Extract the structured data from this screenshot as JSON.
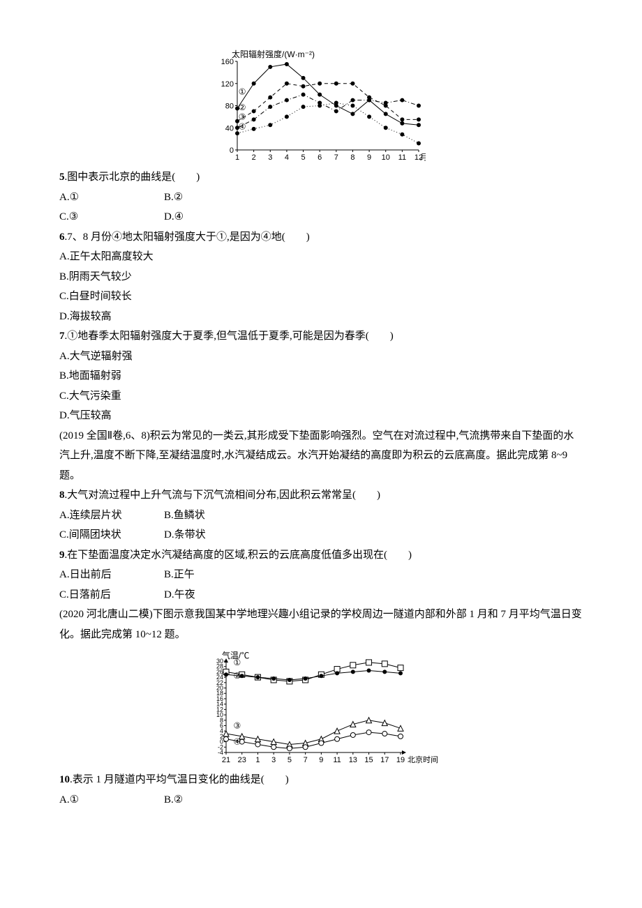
{
  "chart1": {
    "title": "太阳辐射强度/(W·m⁻²)",
    "type": "line",
    "x_categories": [
      "1",
      "2",
      "3",
      "4",
      "5",
      "6",
      "7",
      "8",
      "9",
      "10",
      "11",
      "12"
    ],
    "x_suffix": "月份",
    "ylim": [
      0,
      160
    ],
    "ytick_step": 40,
    "yticks": [
      "0",
      "40",
      "80",
      "120",
      "160"
    ],
    "background_color": "#ffffff",
    "axis_color": "#000000",
    "text_color": "#000000",
    "label_fontsize": 11,
    "marker": "circle",
    "marker_fill": "#000000",
    "marker_size": 3,
    "line_color": "#000000",
    "series": [
      {
        "label": "①",
        "dash": "solid",
        "values": [
          75,
          120,
          150,
          155,
          130,
          100,
          80,
          65,
          90,
          65,
          48,
          45
        ]
      },
      {
        "label": "②",
        "dash": "dashed",
        "values": [
          52,
          70,
          95,
          120,
          115,
          120,
          120,
          120,
          95,
          80,
          55,
          55
        ]
      },
      {
        "label": "③",
        "dash": "dashdot",
        "values": [
          40,
          55,
          78,
          90,
          100,
          85,
          70,
          90,
          90,
          85,
          90,
          80
        ]
      },
      {
        "label": "④",
        "dash": "dotted",
        "values": [
          30,
          38,
          45,
          60,
          78,
          80,
          85,
          80,
          60,
          40,
          28,
          12
        ]
      }
    ],
    "series_label_positions": [
      {
        "x": 1.3,
        "y": 100
      },
      {
        "x": 1.3,
        "y": 72
      },
      {
        "x": 1.3,
        "y": 55
      },
      {
        "x": 1.3,
        "y": 37
      }
    ]
  },
  "q5": {
    "num": "5",
    "text": ".图中表示北京的曲线是(　　)",
    "opts": [
      "A.①",
      "B.②",
      "C.③",
      "D.④"
    ]
  },
  "q6": {
    "num": "6",
    "text": ".7、8 月份④地太阳辐射强度大于①,是因为④地(　　)",
    "opts": [
      "A.正午太阳高度较大",
      "B.阴雨天气较少",
      "C.白昼时间较长",
      "D.海拔较高"
    ]
  },
  "q7": {
    "num": "7",
    "text": ".①地春季太阳辐射强度大于夏季,但气温低于夏季,可能是因为春季(　　)",
    "opts": [
      "A.大气逆辐射强",
      "B.地面辐射弱",
      "C.大气污染重",
      "D.气压较高"
    ]
  },
  "passage1": "(2019 全国Ⅱ卷,6、8)积云为常见的一类云,其形成受下垫面影响强烈。空气在对流过程中,气流携带来自下垫面的水汽上升,温度不断下降,至凝结温度时,水汽凝结成云。水汽开始凝结的高度即为积云的云底高度。据此完成第 8~9 题。",
  "q8": {
    "num": "8",
    "text": ".大气对流过程中上升气流与下沉气流相间分布,因此积云常常呈(　　)",
    "opts": [
      "A.连续层片状",
      "B.鱼鳞状",
      "C.间隔团块状",
      "D.条带状"
    ]
  },
  "q9": {
    "num": "9",
    "text": ".在下垫面温度决定水汽凝结高度的区域,积云的云底高度低值多出现在(　　)",
    "opts": [
      "A.日出前后",
      "B.正午",
      "C.日落前后",
      "D.午夜"
    ]
  },
  "passage2": "(2020 河北唐山二模)下图示意我国某中学地理兴趣小组记录的学校周边一隧道内部和外部 1 月和 7 月平均气温日变化。据此完成第 10~12 题。",
  "chart2": {
    "type": "line",
    "y_title": "气温/℃",
    "x_categories": [
      "21",
      "23",
      "1",
      "3",
      "5",
      "7",
      "9",
      "11",
      "13",
      "15",
      "17",
      "19"
    ],
    "x_suffix": "北京时间",
    "ylim": [
      -4,
      30
    ],
    "yticks_pair": [
      [
        "30",
        30
      ],
      [
        "28",
        28
      ],
      [
        "26",
        26
      ],
      [
        "24",
        24
      ],
      [
        "22",
        22
      ],
      [
        "20",
        20
      ],
      [
        "18",
        18
      ],
      [
        "16",
        16
      ],
      [
        "14",
        14
      ],
      [
        "12",
        12
      ],
      [
        "10",
        10
      ],
      [
        "8",
        8
      ],
      [
        "6",
        6
      ],
      [
        "4",
        4
      ],
      [
        "2",
        2
      ],
      [
        "0",
        0
      ],
      [
        "-2",
        -2
      ],
      [
        "-4",
        -4
      ]
    ],
    "background_color": "#ffffff",
    "axis_color": "#000000",
    "text_color": "#000000",
    "label_fontsize": 11,
    "line_color": "#000000",
    "series": [
      {
        "label": "①",
        "marker": "square_open",
        "values": [
          26,
          25,
          24,
          23,
          22.5,
          23,
          25,
          27,
          28.5,
          29.5,
          29,
          27.5
        ]
      },
      {
        "label": "②",
        "marker": "circle_fill",
        "values": [
          25,
          24.5,
          24,
          23.5,
          23,
          23.5,
          24.5,
          25.5,
          26,
          26.5,
          26,
          25.5
        ]
      },
      {
        "label": "③",
        "marker": "triangle_open",
        "values": [
          3,
          2,
          1,
          0,
          -1,
          -0.5,
          1,
          4,
          6.5,
          8,
          7,
          5
        ]
      },
      {
        "label": "④",
        "marker": "circle_open",
        "values": [
          1,
          0,
          -1,
          -2,
          -2.5,
          -2,
          -0.5,
          1,
          2.5,
          3.5,
          3,
          2
        ]
      }
    ],
    "series_label_positions": [
      {
        "x": 0.2,
        "y": 28.5
      },
      {
        "x": 0.2,
        "y": 23.5
      },
      {
        "x": 0.2,
        "y": 5
      },
      {
        "x": 0.2,
        "y": -1
      }
    ]
  },
  "q10": {
    "num": "10",
    "text": ".表示 1 月隧道内平均气温日变化的曲线是(　　)",
    "opts": [
      "A.①",
      "B.②"
    ]
  }
}
